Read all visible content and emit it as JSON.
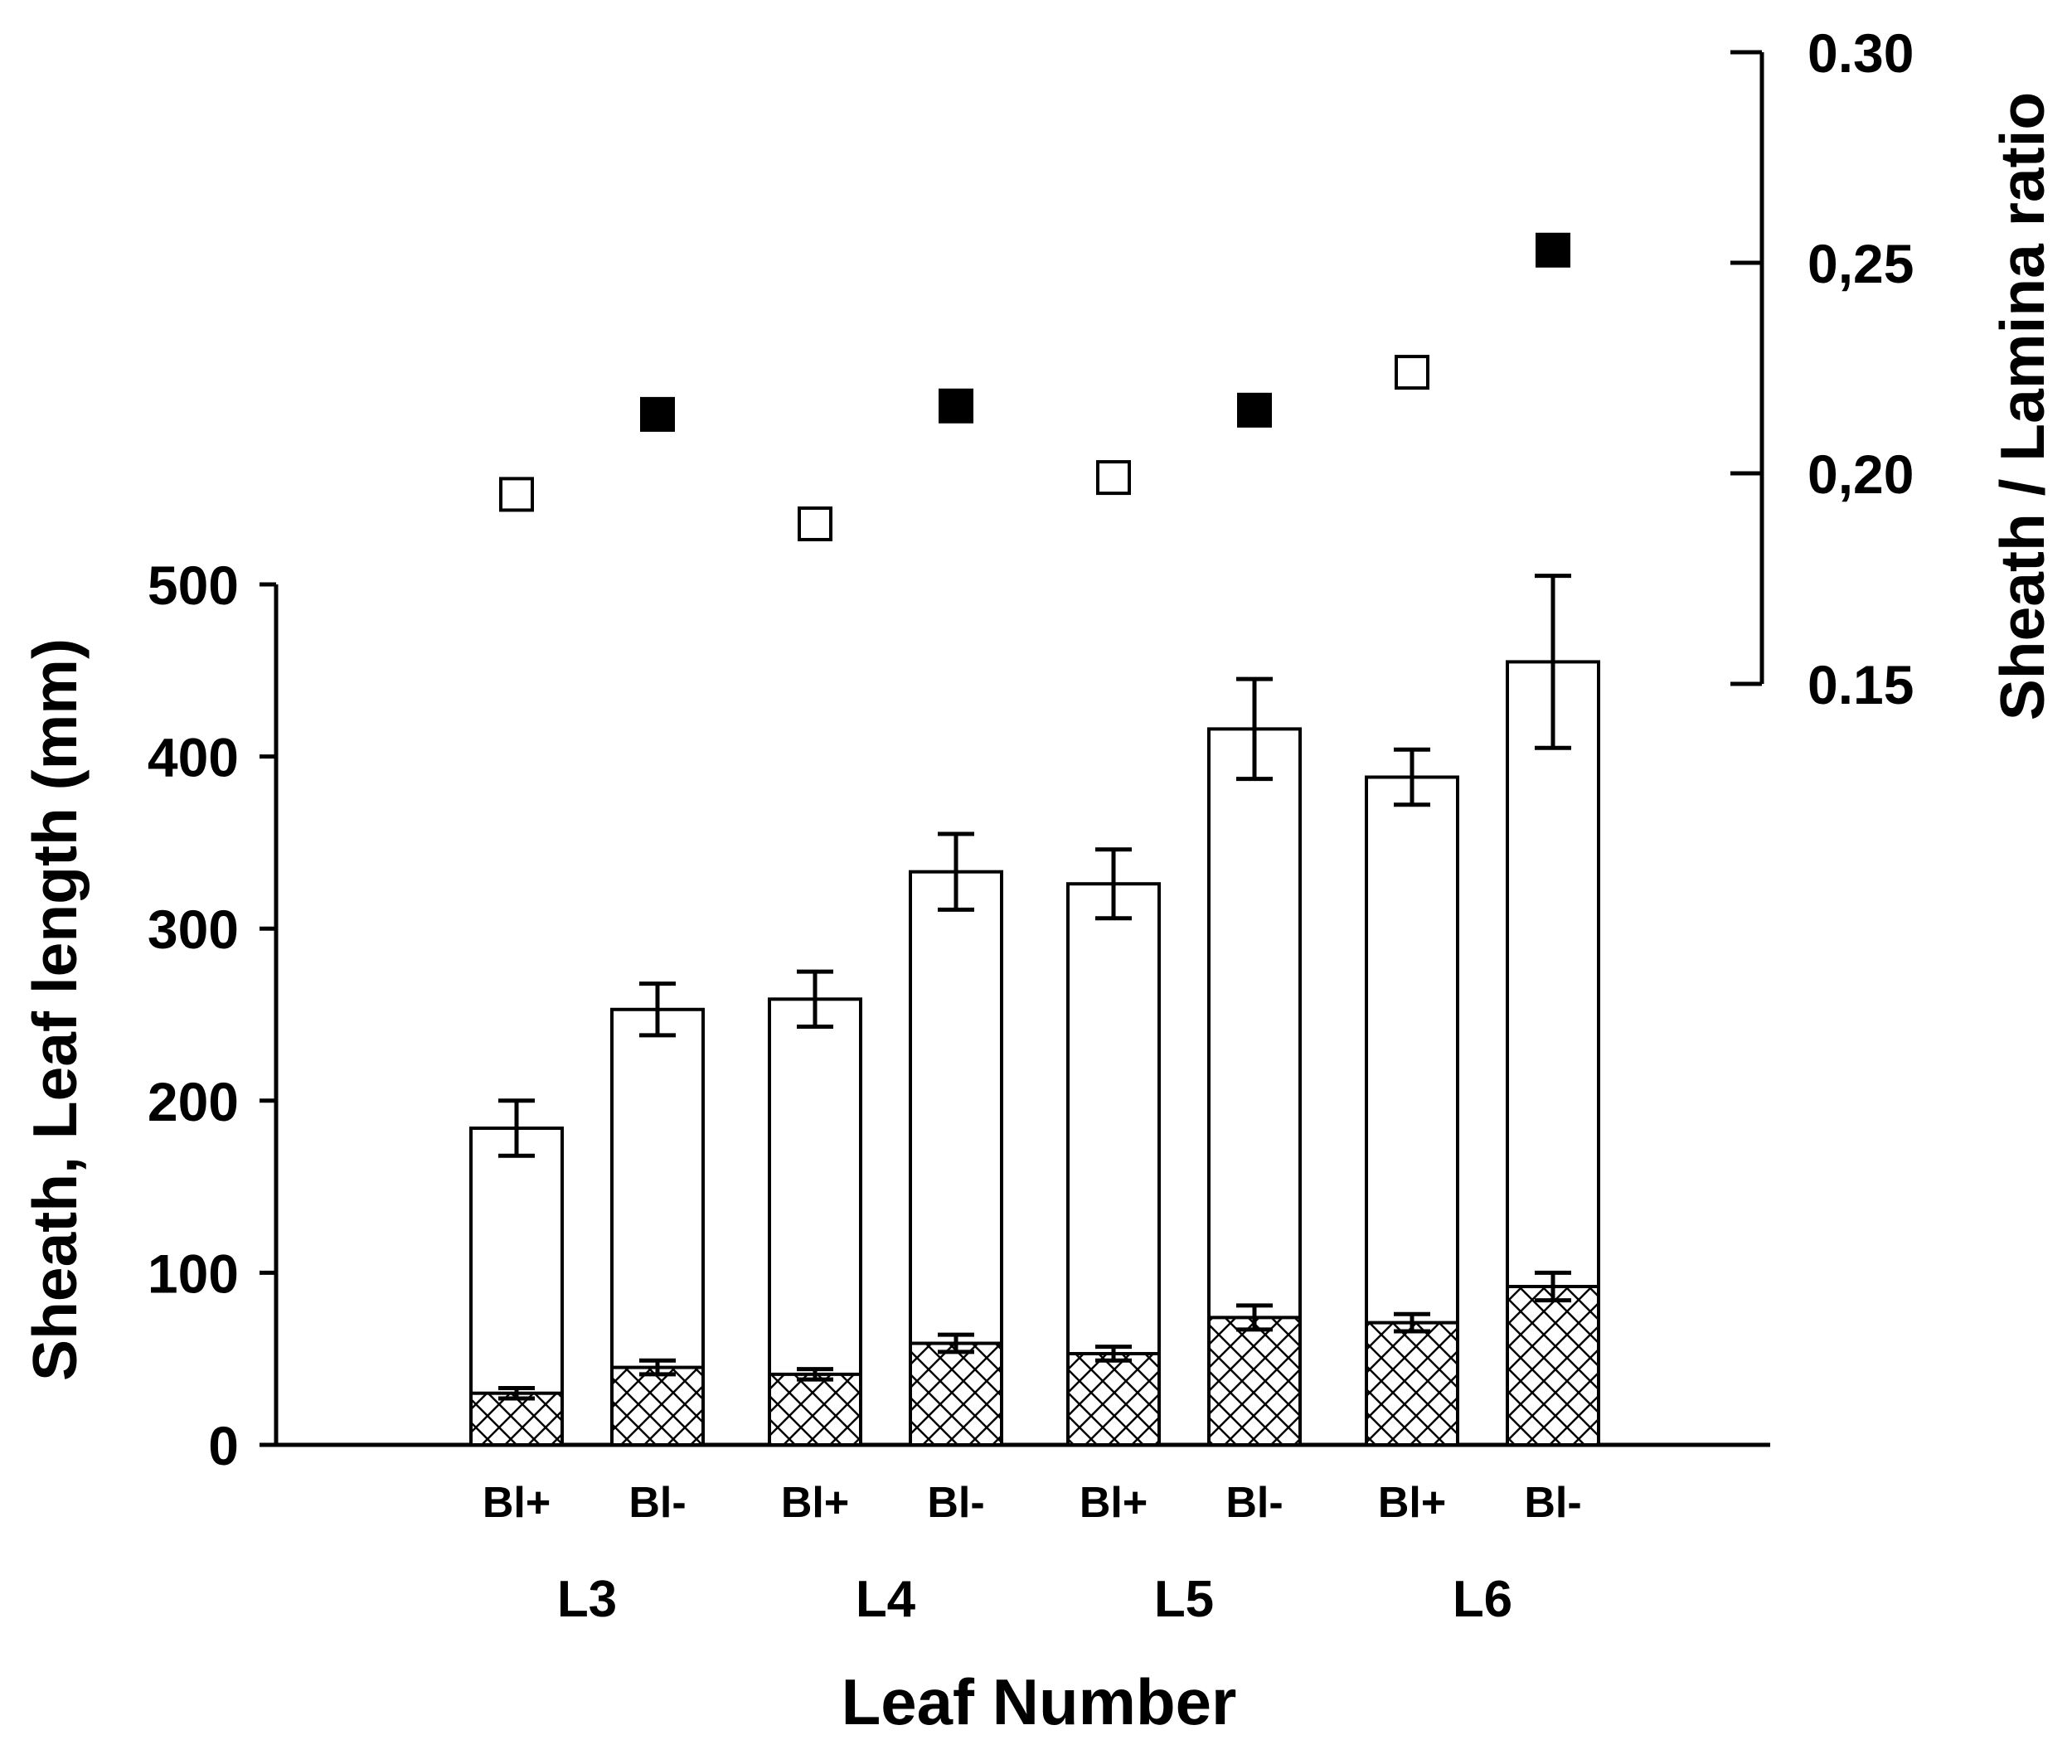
{
  "chart_data": {
    "type": "bar",
    "stacked": true,
    "xlabel": "Leaf Number",
    "ylabel": "Sheath, Leaf length (mm)",
    "ylim": [
      0,
      500
    ],
    "yticks": [
      "0",
      "100",
      "200",
      "300",
      "400",
      "500"
    ],
    "y2label": "Sheath / Lamina ratio",
    "y2lim": [
      0.15,
      0.3
    ],
    "y2ticks": [
      "0.15",
      "0,20",
      "0,25",
      "0.30"
    ],
    "groups": [
      "L3",
      "L4",
      "L5",
      "L6"
    ],
    "categories": [
      "Bl+",
      "Bl-",
      "Bl+",
      "Bl-",
      "Bl+",
      "Bl-",
      "Bl+",
      "Bl-"
    ],
    "series": [
      {
        "kind": "bar",
        "pattern": "crosshatch",
        "values": [
          30,
          45,
          41,
          59,
          53,
          74,
          71,
          92
        ],
        "error": [
          3,
          4,
          3,
          5,
          4,
          7,
          5,
          8
        ]
      },
      {
        "kind": "bar",
        "pattern": "white",
        "values": [
          184,
          253,
          259,
          333,
          326,
          416,
          388,
          455
        ],
        "error": [
          16,
          15,
          16,
          22,
          20,
          29,
          16,
          50
        ]
      },
      {
        "kind": "scatter",
        "axis": "right",
        "values": [
          0.195,
          0.214,
          0.188,
          0.216,
          0.199,
          0.215,
          0.224,
          0.253
        ],
        "markers": [
          "open-square",
          "filled-square",
          "open-square",
          "filled-square",
          "open-square",
          "filled-square",
          "open-square",
          "filled-square"
        ]
      }
    ],
    "grid": false,
    "legend": "none"
  }
}
